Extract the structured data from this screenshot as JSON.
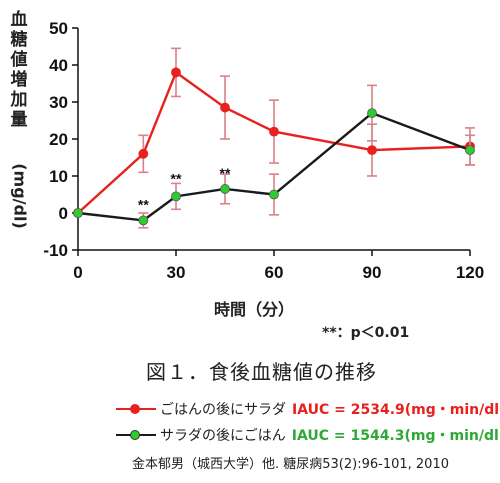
{
  "colors": {
    "rice_first": "#e8211e",
    "salad_first": "#1a1a1a",
    "salad_first_marker": "#2ecc2e",
    "error_bar": "#d8828a",
    "iauc_green": "#2ea836",
    "axis": "#111111"
  },
  "chart_data": {
    "type": "line",
    "title": "",
    "xlabel": "時間（分）",
    "ylabel": "血糖値増加量",
    "ylabel_unit": "(mg/dl)",
    "x": [
      0,
      20,
      30,
      45,
      60,
      90,
      120
    ],
    "xticks": [
      0,
      30,
      60,
      90,
      120
    ],
    "yticks": [
      -10,
      0,
      10,
      20,
      30,
      40,
      50
    ],
    "xlim": [
      0,
      120
    ],
    "ylim": [
      -10,
      50
    ],
    "grid": false,
    "series": [
      {
        "name": "ごはんの後にサラダ",
        "color_key": "rice_first",
        "x": [
          0,
          20,
          30,
          45,
          60,
          90,
          120
        ],
        "y": [
          0,
          16,
          38,
          28.5,
          22,
          17,
          18
        ],
        "err": [
          0,
          5,
          6.5,
          8.5,
          8.5,
          7,
          5
        ]
      },
      {
        "name": "サラダの後にごはん",
        "color_key": "salad_first",
        "x": [
          0,
          20,
          30,
          45,
          60,
          90,
          120
        ],
        "y": [
          0,
          -2,
          4.5,
          6.5,
          5,
          27,
          17
        ],
        "err": [
          0,
          2,
          3.5,
          4,
          5.5,
          7.5,
          4
        ]
      }
    ],
    "annotations": [
      {
        "x": 20,
        "y": 1,
        "text": "**"
      },
      {
        "x": 30,
        "y": 8,
        "text": "**"
      },
      {
        "x": 45,
        "y": 9.5,
        "text": "**"
      }
    ],
    "legend_placement": "below"
  },
  "sig_note": "**：p＜0.01",
  "caption": "図１．食後血糖値の推移",
  "legend": [
    {
      "label": "ごはんの後にサラダ",
      "iauc": "IAUC = 2534.9(mg・min/dl)"
    },
    {
      "label": "サラダの後にごはん",
      "iauc": "IAUC = 1544.3(mg・min/dl)"
    }
  ],
  "citation": "金本郁男（城西大学）他. 糖尿病53(2):96-101, 2010"
}
